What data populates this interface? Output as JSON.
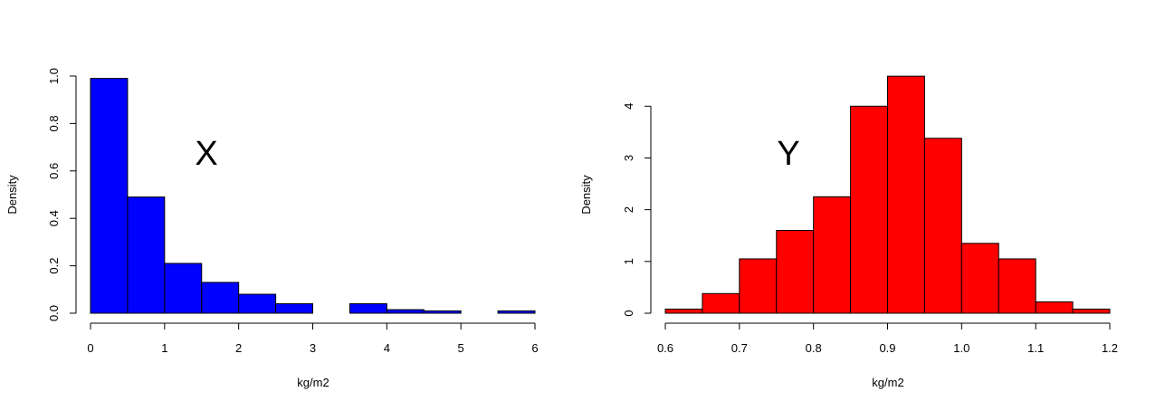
{
  "chart_data": [
    {
      "type": "bar",
      "subtype": "histogram",
      "title": "",
      "annotation": "X",
      "xlabel": "kg/m2",
      "ylabel": "Density",
      "bar_color": "#0000ff",
      "bin_edges": [
        0,
        0.5,
        1,
        1.5,
        2,
        2.5,
        3,
        3.5,
        4,
        4.5,
        5,
        5.5,
        6
      ],
      "values": [
        0.99,
        0.49,
        0.21,
        0.13,
        0.08,
        0.04,
        0.0,
        0.04,
        0.015,
        0.01,
        0.0,
        0.01
      ],
      "xlim": [
        0,
        6
      ],
      "ylim": [
        0,
        1.0
      ],
      "xticks": [
        0,
        1,
        2,
        3,
        4,
        5,
        6
      ],
      "xtick_labels": [
        "0",
        "1",
        "2",
        "3",
        "4",
        "5",
        "6"
      ],
      "yticks": [
        0,
        0.2,
        0.4,
        0.6,
        0.8,
        1.0
      ],
      "ytick_labels": [
        "0.0",
        "0.2",
        "0.4",
        "0.6",
        "0.8",
        "1.0"
      ]
    },
    {
      "type": "bar",
      "subtype": "histogram",
      "title": "",
      "annotation": "Y",
      "xlabel": "kg/m2",
      "ylabel": "Density",
      "bar_color": "#ff0000",
      "bin_edges": [
        0.6,
        0.65,
        0.7,
        0.75,
        0.8,
        0.85,
        0.9,
        0.95,
        1.0,
        1.05,
        1.1,
        1.15,
        1.2
      ],
      "values": [
        0.08,
        0.38,
        1.05,
        1.6,
        2.25,
        4.0,
        4.58,
        3.38,
        1.35,
        1.05,
        0.22,
        0.08
      ],
      "xlim": [
        0.6,
        1.2
      ],
      "ylim": [
        0,
        4.6
      ],
      "xticks": [
        0.6,
        0.7,
        0.8,
        0.9,
        1.0,
        1.1,
        1.2
      ],
      "xtick_labels": [
        "0.6",
        "0.7",
        "0.8",
        "0.9",
        "1.0",
        "1.1",
        "1.2"
      ],
      "yticks": [
        0,
        1,
        2,
        3,
        4
      ],
      "ytick_labels": [
        "0",
        "1",
        "2",
        "3",
        "4"
      ]
    }
  ]
}
